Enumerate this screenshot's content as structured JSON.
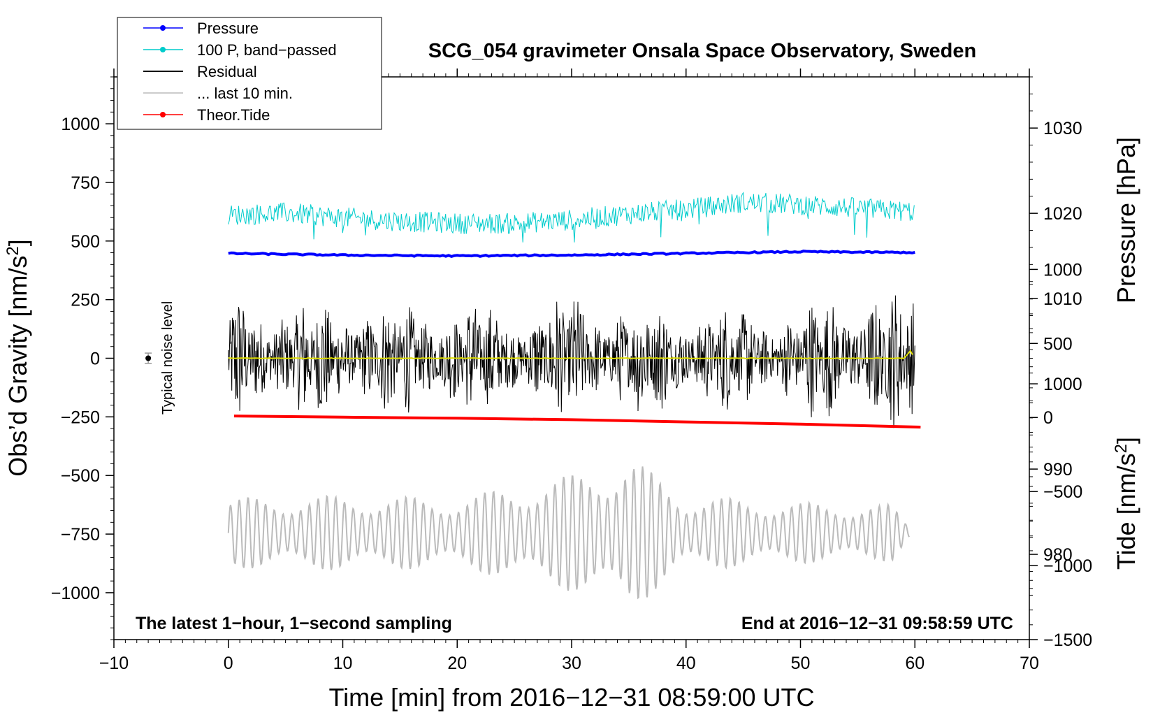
{
  "chart_data": {
    "type": "line",
    "title": "SCG_054 gravimeter Onsala Space Observatory, Sweden",
    "xlabel": "Time [min] from 2016−12−31 08:59:00 UTC",
    "ylabel_left": "Obs’d Gravity [nm/s",
    "ylabel_left_sup": "2",
    "ylabel_left_end": "]",
    "ylabel_right_pressure": "Pressure [hPa]",
    "ylabel_right_tide": "Tide [nm/s",
    "ylabel_right_tide_sup": "2",
    "ylabel_right_tide_end": "]",
    "xlim": [
      -10,
      70
    ],
    "ylim": [
      -1200,
      1200
    ],
    "pressure_ylim": [
      970,
      1036
    ],
    "tide_ylim": [
      -1500,
      2300
    ],
    "x_ticks": [
      "−10",
      "0",
      "10",
      "20",
      "30",
      "40",
      "50",
      "60",
      "70"
    ],
    "x_tick_values": [
      -10,
      0,
      10,
      20,
      30,
      40,
      50,
      60,
      70
    ],
    "y_ticks": [
      "1000",
      "750",
      "500",
      "250",
      "0",
      "−250",
      "−500",
      "−750",
      "−1000"
    ],
    "y_tick_values": [
      1000,
      750,
      500,
      250,
      0,
      -250,
      -500,
      -750,
      -1000
    ],
    "pressure_ticks": [
      "1030",
      "1020",
      "1010",
      "1000",
      "990",
      "980"
    ],
    "pressure_tick_values": [
      1030,
      1020,
      1010,
      1000,
      990,
      980
    ],
    "tide_ticks": [
      "1000",
      "500",
      "0",
      "−500",
      "−1000",
      "−1500"
    ],
    "tide_tick_values": [
      1000,
      500,
      0,
      -500,
      -1000,
      -1500
    ],
    "annotation_left": "The latest 1−hour, 1−second sampling",
    "annotation_right": "End at 2016−12−31 09:58:59 UTC",
    "noise_label": "Typical noise level",
    "noise_marker": {
      "x": -7,
      "y": 0,
      "err": 22
    },
    "legend": [
      {
        "label": "Pressure",
        "color": "#0000ff",
        "marker": true
      },
      {
        "label": "100 P, band−passed",
        "color": "#00cccc",
        "marker": true
      },
      {
        "label": "Residual",
        "color": "#000000",
        "marker": false
      },
      {
        "label": "... last 10 min.",
        "color": "#bbbbbb",
        "marker": false
      },
      {
        "label": "Theor.Tide",
        "color": "#ff0000",
        "marker": true
      }
    ],
    "series": [
      {
        "name": "Pressure",
        "axis": "pressure",
        "color": "#0000ff",
        "x": [
          0,
          10,
          20,
          30,
          40,
          50,
          60
        ],
        "values": [
          1015.3,
          1015.1,
          1015.0,
          1015.1,
          1015.3,
          1015.5,
          1015.4
        ]
      },
      {
        "name": "100 P, band−passed",
        "axis": "gravity",
        "color": "#00cccc",
        "x": [
          0,
          5,
          10,
          15,
          20,
          25,
          30,
          35,
          40,
          45,
          50,
          55,
          60
        ],
        "values": [
          610,
          620,
          600,
          585,
          575,
          575,
          590,
          615,
          635,
          665,
          655,
          640,
          625
        ],
        "noise_amp": 45
      },
      {
        "name": "Residual",
        "axis": "gravity",
        "color": "#000000",
        "x": [
          0,
          5,
          10,
          15,
          20,
          25,
          30,
          35,
          40,
          45,
          50,
          55,
          60
        ],
        "values": [
          0,
          0,
          0,
          0,
          0,
          0,
          0,
          0,
          0,
          0,
          0,
          0,
          0
        ],
        "envelope": [
          320,
          260,
          280,
          250,
          270,
          230,
          300,
          260,
          250,
          230,
          240,
          330,
          290
        ]
      },
      {
        "name": "Residual (smoothed)",
        "axis": "gravity",
        "color": "#dddd00",
        "x": [
          0,
          10,
          20,
          30,
          40,
          50,
          59,
          59.6,
          60
        ],
        "values": [
          0,
          0,
          0,
          0,
          0,
          0,
          0,
          30,
          0
        ]
      },
      {
        "name": "... last 10 min.",
        "axis": "gravity",
        "color": "#bbbbbb",
        "x": [
          0,
          10,
          20,
          30,
          35,
          40,
          50,
          58,
          59.5
        ],
        "center": -745,
        "envelope": [
          150,
          160,
          150,
          250,
          330,
          160,
          130,
          120,
          30
        ]
      },
      {
        "name": "Theor.Tide",
        "axis": "tide",
        "color": "#ff0000",
        "x": [
          0.5,
          10,
          20,
          30,
          40,
          50,
          60.5
        ],
        "values": [
          10,
          2,
          -5,
          -15,
          -30,
          -45,
          -65
        ]
      }
    ]
  }
}
